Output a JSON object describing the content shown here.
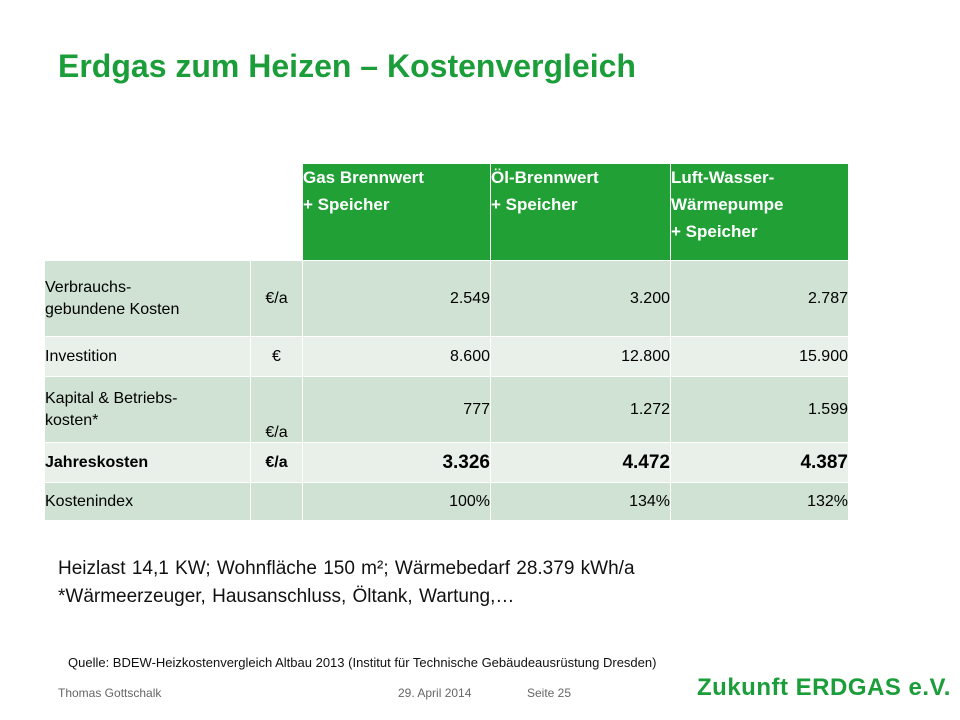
{
  "title": "Erdgas zum Heizen – Kostenvergleich",
  "table": {
    "headers": [
      "Gas Brennwert\n+ Speicher",
      "Öl-Brennwert\n+ Speicher",
      "Luft-Wasser-\nWärmepumpe\n+ Speicher"
    ],
    "rows": [
      {
        "label": "Verbrauchs-\ngebundene Kosten",
        "unit": "€/a",
        "values": [
          "2.549",
          "3.200",
          "2.787"
        ]
      },
      {
        "label": "Investition",
        "unit": "€",
        "values": [
          "8.600",
          "12.800",
          "15.900"
        ]
      },
      {
        "label": "Kapital & Betriebs-\nkosten*",
        "unit": "€/a",
        "values": [
          "777",
          "1.272",
          "1.599"
        ]
      },
      {
        "label": "Jahreskosten",
        "unit": "€/a",
        "values": [
          "3.326",
          "4.472",
          "4.387"
        ]
      },
      {
        "label": "Kostenindex",
        "unit": "",
        "values": [
          "100%",
          "134%",
          "132%"
        ]
      }
    ]
  },
  "notes": {
    "line1": "Heizlast 14,1 KW; Wohnfläche 150 m²; Wärmebedarf 28.379 kWh/a",
    "line2": "*Wärmeerzeuger, Hausanschluss, Öltank, Wartung,…"
  },
  "source": "Quelle: BDEW-Heizkostenvergleich Altbau 2013 (Institut für Technische Gebäudeausrüstung Dresden)",
  "footer": {
    "author": "Thomas Gottschalk",
    "date": "29. April 2014",
    "page": "Seite 25",
    "logo_text": "Zukunft ERDGAS e.V."
  },
  "colors": {
    "accent": "#1b9e3a",
    "header_bg": "#21a036",
    "row_dark": "#cfe2d3",
    "row_light": "#e8f0e9"
  }
}
